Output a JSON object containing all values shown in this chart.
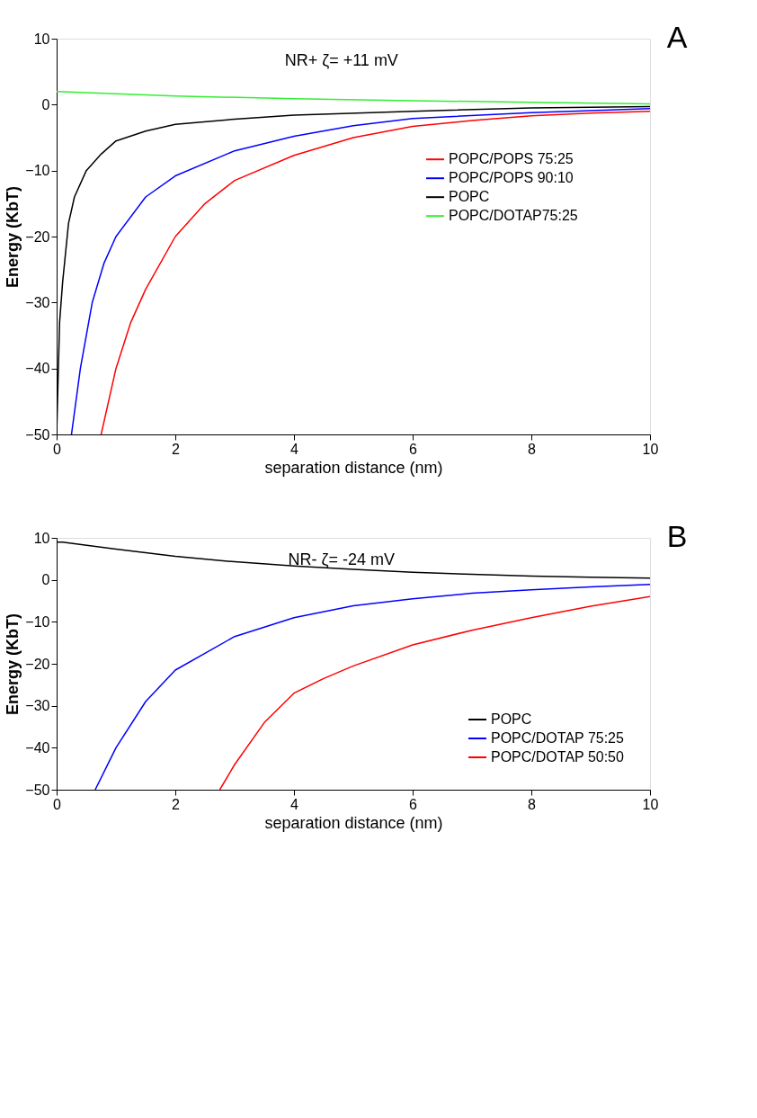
{
  "chart_data": [
    {
      "type": "line",
      "xlabel": "separation distance (nm)",
      "ylabel": "Energy (KbT)",
      "xlim": [
        0,
        10
      ],
      "ylim": [
        -50,
        10
      ],
      "xticks": [
        0,
        2,
        4,
        6,
        8,
        10
      ],
      "yticks": [
        -50,
        -40,
        -30,
        -20,
        -10,
        0,
        10
      ],
      "legend": "right",
      "annotations": [
        "NR+      ζ= +11 mV",
        "A"
      ],
      "series": [
        {
          "name": "POPC/POPS 75:25",
          "color": "#ff0000",
          "x": [
            0.75,
            1,
            1.25,
            1.5,
            2,
            2.5,
            3,
            4,
            5,
            6,
            7,
            8,
            9,
            10
          ],
          "values": [
            -50,
            -40,
            -33,
            -28,
            -20,
            -15,
            -11.5,
            -7.7,
            -5,
            -3.3,
            -2.4,
            -1.7,
            -1.3,
            -1.0
          ]
        },
        {
          "name": "POPC/POPS 90:10",
          "color": "#0000ff",
          "x": [
            0.25,
            0.4,
            0.6,
            0.8,
            1,
            1.5,
            2,
            3,
            4,
            5,
            6,
            8,
            10
          ],
          "values": [
            -50,
            -40,
            -30,
            -24,
            -20,
            -14,
            -10.8,
            -7,
            -4.8,
            -3.2,
            -2.1,
            -1.2,
            -0.6
          ]
        },
        {
          "name": "POPC",
          "color": "#000000",
          "x": [
            0,
            0.05,
            0.1,
            0.2,
            0.3,
            0.5,
            0.75,
            1,
            1.5,
            2,
            3,
            4,
            6,
            8,
            10
          ],
          "values": [
            -50,
            -33,
            -27,
            -18,
            -14,
            -10,
            -7.5,
            -5.5,
            -4,
            -3,
            -2.2,
            -1.6,
            -1,
            -0.5,
            -0.3
          ]
        },
        {
          "name": "POPC/DOTAP75:25",
          "color": "#33ee33",
          "x": [
            0,
            2,
            4,
            6,
            8,
            10
          ],
          "values": [
            2.0,
            1.3,
            0.9,
            0.6,
            0.35,
            0.1
          ]
        }
      ]
    },
    {
      "type": "line",
      "xlabel": "separation distance (nm)",
      "ylabel": "Energy (KbT)",
      "xlim": [
        0,
        10
      ],
      "ylim": [
        -50,
        10
      ],
      "xticks": [
        0,
        2,
        4,
        6,
        8,
        10
      ],
      "yticks": [
        -50,
        -40,
        -30,
        -20,
        -10,
        0,
        10
      ],
      "legend": "bottom right",
      "annotations": [
        "NR-     ζ= -24 mV",
        "B"
      ],
      "series": [
        {
          "name": "POPC",
          "color": "#000000",
          "x": [
            0,
            0.1,
            1,
            2,
            3,
            4,
            5,
            6,
            7,
            8,
            9,
            10
          ],
          "values": [
            9,
            9,
            7.3,
            5.6,
            4.3,
            3.3,
            2.5,
            1.8,
            1.3,
            0.9,
            0.6,
            0.4
          ]
        },
        {
          "name": "POPC/DOTAP 75:25",
          "color": "#0000ff",
          "x": [
            0.65,
            1,
            1.5,
            2,
            3,
            4,
            5,
            6,
            7,
            8,
            9,
            10
          ],
          "values": [
            -50,
            -40,
            -29,
            -21.5,
            -13.5,
            -9,
            -6.2,
            -4.5,
            -3.2,
            -2.4,
            -1.7,
            -1.1
          ]
        },
        {
          "name": "POPC/DOTAP 50:50",
          "color": "#ff0000",
          "x": [
            2.75,
            3,
            3.5,
            4,
            4.5,
            5,
            6,
            7,
            8,
            9,
            10
          ],
          "values": [
            -50,
            -44,
            -34,
            -27,
            -23.5,
            -20.5,
            -15.5,
            -12,
            -9,
            -6.3,
            -4
          ]
        }
      ]
    }
  ]
}
